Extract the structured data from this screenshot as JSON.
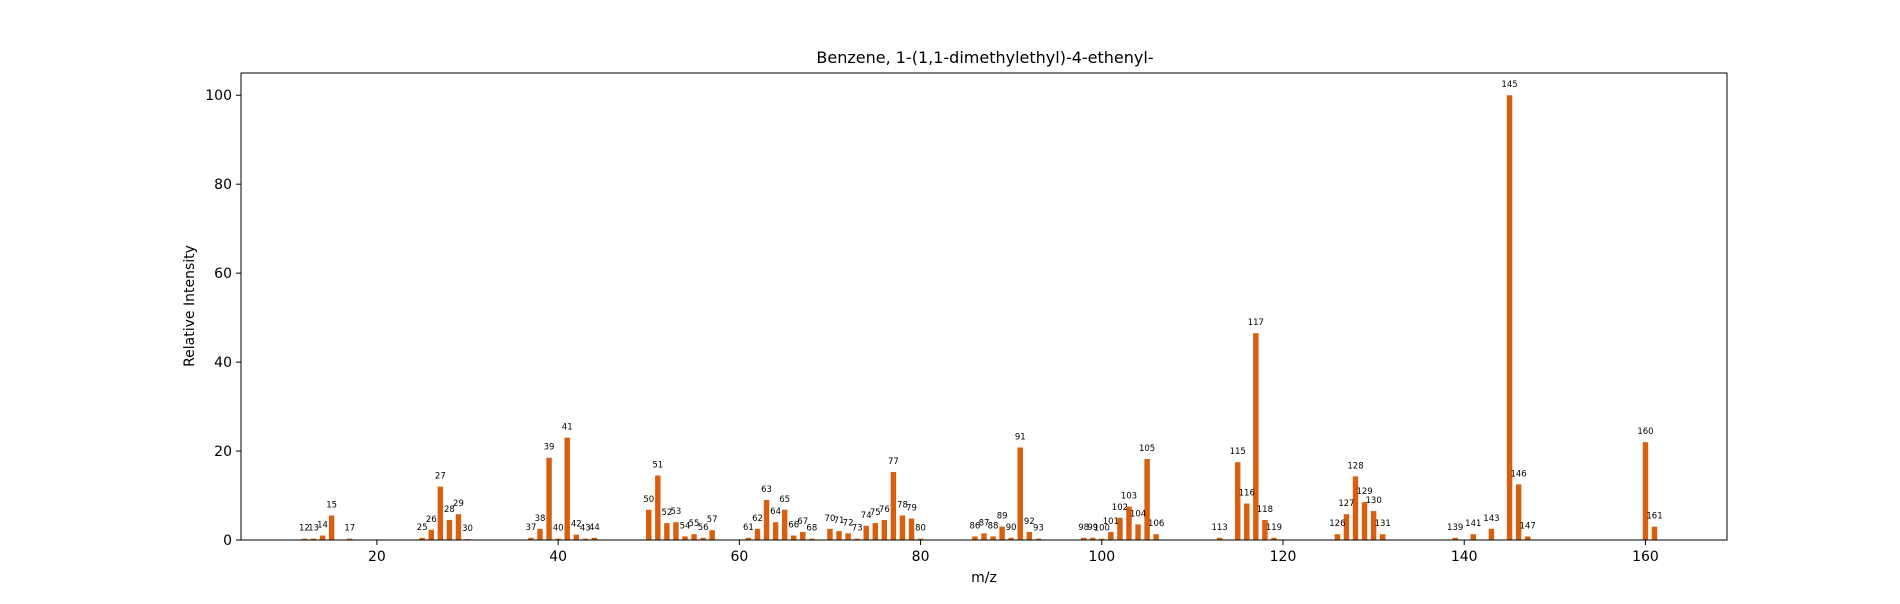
{
  "chart_data": {
    "type": "bar",
    "title": "Benzene, 1-(1,1-dimethylethyl)-4-ethenyl-",
    "xlabel": "m/z",
    "ylabel": "Relative Intensity",
    "xlim": [
      5,
      169
    ],
    "ylim": [
      0,
      105
    ],
    "xticks": [
      20,
      40,
      60,
      80,
      100,
      120,
      140,
      160
    ],
    "yticks": [
      0,
      20,
      40,
      60,
      80,
      100
    ],
    "bar_color": "#d95f0e",
    "grid": false,
    "legend": "none",
    "points": [
      {
        "x": 12,
        "y": 0.3
      },
      {
        "x": 13,
        "y": 0.3
      },
      {
        "x": 14,
        "y": 1.0
      },
      {
        "x": 15,
        "y": 5.5
      },
      {
        "x": 17,
        "y": 0.3
      },
      {
        "x": 25,
        "y": 0.5
      },
      {
        "x": 26,
        "y": 2.3
      },
      {
        "x": 27,
        "y": 12.0
      },
      {
        "x": 28,
        "y": 4.5
      },
      {
        "x": 29,
        "y": 5.8
      },
      {
        "x": 30,
        "y": 0.2
      },
      {
        "x": 37,
        "y": 0.5
      },
      {
        "x": 38,
        "y": 2.5
      },
      {
        "x": 39,
        "y": 18.5
      },
      {
        "x": 40,
        "y": 0.3
      },
      {
        "x": 41,
        "y": 23.0
      },
      {
        "x": 42,
        "y": 1.2
      },
      {
        "x": 43,
        "y": 0.3
      },
      {
        "x": 44,
        "y": 0.5
      },
      {
        "x": 50,
        "y": 6.8
      },
      {
        "x": 51,
        "y": 14.5
      },
      {
        "x": 52,
        "y": 3.8
      },
      {
        "x": 53,
        "y": 4.0
      },
      {
        "x": 54,
        "y": 0.8
      },
      {
        "x": 55,
        "y": 1.3
      },
      {
        "x": 56,
        "y": 0.5
      },
      {
        "x": 57,
        "y": 2.2
      },
      {
        "x": 61,
        "y": 0.5
      },
      {
        "x": 62,
        "y": 2.5
      },
      {
        "x": 63,
        "y": 9.0
      },
      {
        "x": 64,
        "y": 4.0
      },
      {
        "x": 65,
        "y": 6.8
      },
      {
        "x": 66,
        "y": 1.0
      },
      {
        "x": 67,
        "y": 1.8
      },
      {
        "x": 68,
        "y": 0.3
      },
      {
        "x": 70,
        "y": 2.5
      },
      {
        "x": 71,
        "y": 2.0
      },
      {
        "x": 72,
        "y": 1.5
      },
      {
        "x": 73,
        "y": 0.3
      },
      {
        "x": 74,
        "y": 3.2
      },
      {
        "x": 75,
        "y": 3.8
      },
      {
        "x": 76,
        "y": 4.5
      },
      {
        "x": 77,
        "y": 15.3
      },
      {
        "x": 78,
        "y": 5.5
      },
      {
        "x": 79,
        "y": 4.8
      },
      {
        "x": 80,
        "y": 0.3
      },
      {
        "x": 86,
        "y": 0.8
      },
      {
        "x": 87,
        "y": 1.5
      },
      {
        "x": 88,
        "y": 0.8
      },
      {
        "x": 89,
        "y": 3.0
      },
      {
        "x": 90,
        "y": 0.5
      },
      {
        "x": 91,
        "y": 20.8
      },
      {
        "x": 92,
        "y": 1.8
      },
      {
        "x": 93,
        "y": 0.3
      },
      {
        "x": 98,
        "y": 0.5
      },
      {
        "x": 99,
        "y": 0.5
      },
      {
        "x": 100,
        "y": 0.3
      },
      {
        "x": 101,
        "y": 1.8
      },
      {
        "x": 102,
        "y": 5.0
      },
      {
        "x": 103,
        "y": 7.5
      },
      {
        "x": 104,
        "y": 3.5
      },
      {
        "x": 105,
        "y": 18.2
      },
      {
        "x": 106,
        "y": 1.3
      },
      {
        "x": 113,
        "y": 0.5
      },
      {
        "x": 115,
        "y": 17.5
      },
      {
        "x": 116,
        "y": 8.2
      },
      {
        "x": 117,
        "y": 46.5
      },
      {
        "x": 118,
        "y": 4.5
      },
      {
        "x": 119,
        "y": 0.5
      },
      {
        "x": 126,
        "y": 1.3
      },
      {
        "x": 127,
        "y": 5.8
      },
      {
        "x": 128,
        "y": 14.3
      },
      {
        "x": 129,
        "y": 8.5
      },
      {
        "x": 130,
        "y": 6.5
      },
      {
        "x": 131,
        "y": 1.3
      },
      {
        "x": 139,
        "y": 0.5
      },
      {
        "x": 141,
        "y": 1.3
      },
      {
        "x": 143,
        "y": 2.5
      },
      {
        "x": 145,
        "y": 100.0
      },
      {
        "x": 146,
        "y": 12.5
      },
      {
        "x": 147,
        "y": 0.8
      },
      {
        "x": 160,
        "y": 22.0
      },
      {
        "x": 161,
        "y": 3.0
      }
    ]
  }
}
